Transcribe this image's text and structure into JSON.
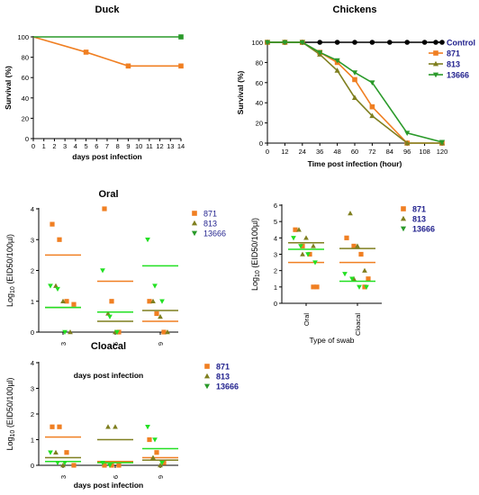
{
  "colors": {
    "control": "#000000",
    "s871": "#f07f22",
    "s813": "#7f7f1f",
    "s13666": "#2a9a2a",
    "s13666_light": "#22e022",
    "legend_text": "#1e1e8c"
  },
  "chart_data": [
    {
      "id": "duck",
      "type": "line",
      "title": "Duck",
      "xlabel": "days post infection",
      "ylabel": "Survival (%)",
      "xlim": [
        0,
        14
      ],
      "ylim": [
        0,
        100
      ],
      "xticks": [
        "0",
        "1",
        "2",
        "3",
        "4",
        "5",
        "6",
        "7",
        "8",
        "9",
        "10",
        "11",
        "12",
        "13",
        "14"
      ],
      "yticks": [
        "0",
        "20",
        "40",
        "60",
        "80",
        "100"
      ],
      "series": [
        {
          "name": "",
          "color": "s871",
          "marker": "square",
          "points": [
            [
              0,
              100
            ],
            [
              5,
              85
            ],
            [
              9,
              71.4
            ],
            [
              14,
              71.4
            ]
          ]
        },
        {
          "name": "",
          "color": "s13666",
          "marker": "square",
          "points": [
            [
              0,
              100
            ],
            [
              14,
              100
            ]
          ]
        }
      ]
    },
    {
      "id": "chickens",
      "type": "line",
      "title": "Chickens",
      "xlabel": "Time post infection (hour)",
      "ylabel": "Survival (%)",
      "xlim": [
        0,
        120
      ],
      "ylim": [
        0,
        100
      ],
      "xticks": [
        "0",
        "12",
        "24",
        "36",
        "48",
        "60",
        "72",
        "84",
        "96",
        "108",
        "120"
      ],
      "yticks": [
        "0",
        "20",
        "40",
        "60",
        "80",
        "100"
      ],
      "legend": [
        "Control",
        "871",
        "813",
        "13666"
      ],
      "series": [
        {
          "name": "Control",
          "color": "control",
          "marker": "circle",
          "points": [
            [
              0,
              100
            ],
            [
              12,
              100
            ],
            [
              24,
              100
            ],
            [
              36,
              100
            ],
            [
              48,
              100
            ],
            [
              60,
              100
            ],
            [
              72,
              100
            ],
            [
              84,
              100
            ],
            [
              96,
              100
            ],
            [
              108,
              100
            ],
            [
              120,
              100
            ]
          ]
        },
        {
          "name": "871",
          "color": "s871",
          "marker": "square",
          "points": [
            [
              0,
              100
            ],
            [
              12,
              100
            ],
            [
              24,
              100
            ],
            [
              36,
              90
            ],
            [
              48,
              80
            ],
            [
              60,
              63
            ],
            [
              72,
              36
            ],
            [
              96,
              0
            ],
            [
              120,
              0
            ]
          ]
        },
        {
          "name": "813",
          "color": "s813",
          "marker": "triangle",
          "points": [
            [
              0,
              100
            ],
            [
              12,
              100
            ],
            [
              24,
              100
            ],
            [
              36,
              88
            ],
            [
              48,
              72
            ],
            [
              60,
              45
            ],
            [
              72,
              27
            ],
            [
              96,
              0
            ],
            [
              120,
              0
            ]
          ]
        },
        {
          "name": "13666",
          "color": "s13666",
          "marker": "triangle-down",
          "points": [
            [
              0,
              100
            ],
            [
              12,
              100
            ],
            [
              24,
              100
            ],
            [
              36,
              90
            ],
            [
              48,
              82
            ],
            [
              60,
              70
            ],
            [
              72,
              60
            ],
            [
              96,
              10
            ],
            [
              120,
              1
            ]
          ]
        }
      ]
    },
    {
      "id": "oral",
      "type": "scatter",
      "title": "Oral",
      "xlabel": "days post infection",
      "ylabel": "Log10 (EID50/100µl)",
      "ylim": [
        0,
        4
      ],
      "yticks": [
        "0",
        "1",
        "2",
        "3",
        "4"
      ],
      "categories": [
        "3",
        "6",
        "9"
      ],
      "legend": [
        "871",
        "813",
        "13666"
      ],
      "groups": [
        {
          "category": "3",
          "s871": [
            3.5,
            3.0,
            1.0,
            0.9
          ],
          "s813": [
            1.5,
            1.0,
            0.0
          ],
          "s13666": [
            1.5,
            1.4,
            0.0
          ],
          "means": {
            "s871": 2.5,
            "s813": 0.8,
            "s13666": 0.8
          }
        },
        {
          "category": "6",
          "s871": [
            4.0,
            1.0,
            0.0
          ],
          "s813": [
            0.6,
            0.0
          ],
          "s13666": [
            2.0,
            0.5,
            0.0
          ],
          "means": {
            "s871": 1.65,
            "s813": 0.35,
            "s13666": 0.65
          }
        },
        {
          "category": "9",
          "s871": [
            1.0,
            0.6,
            0.0
          ],
          "s813": [
            1.0,
            0.5,
            0.0
          ],
          "s13666": [
            3.0,
            1.5,
            1.0
          ],
          "means": {
            "s871": 0.35,
            "s813": 0.7,
            "s13666": 2.15
          }
        }
      ]
    },
    {
      "id": "swab",
      "type": "scatter",
      "title": "",
      "xlabel": "Type of swab",
      "ylabel": "Log10 (EID50/100µl)",
      "ylim": [
        0,
        6
      ],
      "yticks": [
        "0",
        "1",
        "2",
        "3",
        "4",
        "5",
        "6"
      ],
      "categories": [
        "Oral",
        "Cloacal"
      ],
      "legend": [
        "871",
        "813",
        "13666"
      ],
      "groups": [
        {
          "category": "Oral",
          "s871": [
            4.5,
            3.5,
            3.0,
            1.0,
            1.0
          ],
          "s813": [
            4.5,
            4.0,
            3.5,
            3.0
          ],
          "s13666": [
            4.0,
            3.5,
            3.0,
            2.5
          ],
          "means": {
            "s871": 2.5,
            "s813": 3.7,
            "s13666": 3.3
          }
        },
        {
          "category": "Cloacal",
          "s871": [
            4.0,
            3.5,
            3.0,
            1.5,
            1.0
          ],
          "s813": [
            5.5,
            3.5,
            2.0,
            1.5
          ],
          "s13666": [
            1.8,
            1.5,
            1.0,
            1.0
          ],
          "means": {
            "s871": 2.5,
            "s813": 3.35,
            "s13666": 1.35
          }
        }
      ]
    },
    {
      "id": "cloacal",
      "type": "scatter",
      "title": "Cloacal",
      "xlabel": "days post infection",
      "ylabel": "Log10 (EID50/100µl)",
      "ylim": [
        0,
        4
      ],
      "yticks": [
        "0",
        "1",
        "2",
        "3",
        "4"
      ],
      "categories": [
        "3",
        "6",
        "9"
      ],
      "legend": [
        "871",
        "813",
        "13666"
      ],
      "groups": [
        {
          "category": "3",
          "s871": [
            1.5,
            1.5,
            0.5,
            0.0
          ],
          "s813": [
            0.5,
            0.0
          ],
          "s13666": [
            0.5,
            0.1,
            0.1
          ],
          "means": {
            "s871": 1.1,
            "s813": 0.3,
            "s13666": 0.15
          }
        },
        {
          "category": "6",
          "s871": [
            0.0,
            0.0,
            0.0
          ],
          "s813": [
            1.5,
            1.5
          ],
          "s13666": [
            0.1,
            0.0
          ],
          "means": {
            "s871": 0.15,
            "s813": 1.0,
            "s13666": 0.1
          }
        },
        {
          "category": "9",
          "s871": [
            1.0,
            0.5,
            0.1
          ],
          "s813": [
            0.3,
            0.0
          ],
          "s13666": [
            1.5,
            1.0,
            0.1
          ],
          "means": {
            "s871": 0.3,
            "s813": 0.2,
            "s13666": 0.65
          }
        }
      ]
    }
  ]
}
